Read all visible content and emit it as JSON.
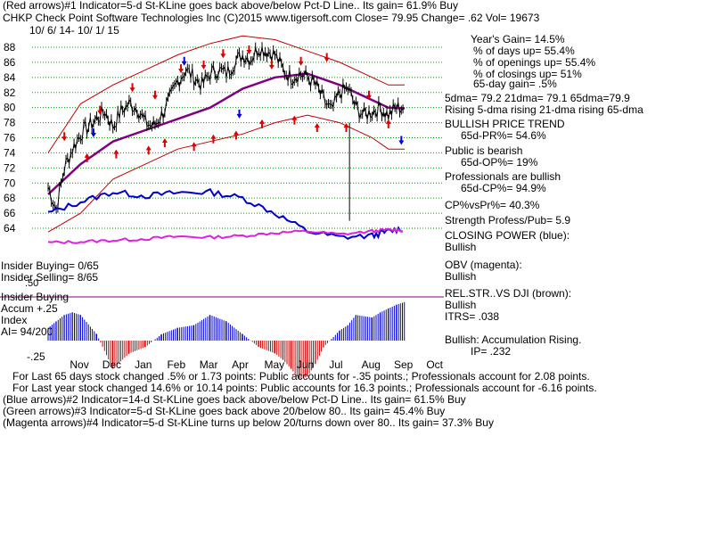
{
  "header": {
    "line1": "(Red arrows)#1 Indicator=5-d St-KLine goes back above/below Pct-D Line.. Its gain= 61.9% Buy",
    "line2": "CHKP   Check Point Software Technologies Inc  (C)2015 www.tigersoft.com     Close=  79.95  Change= .62 Vol= 19673",
    "dates": "10/ 6/ 14- 10/ 1/ 15"
  },
  "left_labels": {
    "insider_buying_count": "Insider Buying= 0/65",
    "insider_selling_count": "Insider Selling= 8/65",
    "obv_level": ".50",
    "insider_buying": "Insider Buying",
    "accum_plus": "Accum +.25",
    "index": "Index",
    "ai": "AI= 94/200",
    "minus25": "-.25"
  },
  "right_panel": {
    "year_gain": "Year's Gain= 14.5%",
    "pct_days_up": "% of days up= 55.4%",
    "pct_openings_up": "% of openings up= 55.4%",
    "pct_closings_up": "% of closings up= 51%",
    "gain_65": "65-day gain= .5%",
    "ma_line": "5dma= 79.2  21dma= 79.1  65dma=79.9",
    "rising_line": "Rising 5-dma  rising 21-dma  rising 65-dma",
    "trend": "BULLISH PRICE TREND",
    "pr": "65d-PR%= 54.6%",
    "public_bearish": "Public is bearish",
    "op": "65d-OP%= 19%",
    "pros_bullish": "Professionals are bullish",
    "cp": "65d-CP%= 94.9%",
    "cpvspr": "CP%vsPr%=  40.3%",
    "strength": "Strength Profess/Pub= 5.9",
    "closing_power": "CLOSING POWER (blue):",
    "cp_bullish": "Bullish",
    "obv": "OBV (magenta):",
    "obv_bullish": "Bullish",
    "relstr": "REL.STR..VS DJI (brown):",
    "relstr_bullish": "Bullish",
    "itrs": "ITRS= .038",
    "accum": "Bullish: Accumulation Rising.",
    "ip": "IP=  .232"
  },
  "footer": {
    "line1": "For Last 65 days stock changed  .5% or  1.73 points:  Public accounts for -.35 points.;  Professionals account for  2.08 points.",
    "line2": "For Last year stock changed  14.6% or  10.14 points:  Public accounts for  16.3 points.;  Professionals account for -6.16 points.",
    "line3": "(Blue arrows)#2 Indicator=14-d St-KLine goes back above/below Pct-D Line.. Its gain= 61.5% Buy",
    "line4": "(Green arrows)#3 Indicator=5-d St-KLine goes back above 20/below 80.. Its gain= 45.4% Buy",
    "line5": "(Magenta arrows)#4 Indicator=5-d St-KLine turns up below 20/turns down over 80.. Its gain= 37.3% Buy"
  },
  "colors": {
    "price": "#000000",
    "band": "#c00000",
    "ma65": "#800080",
    "closing_power": "#0000cc",
    "obv": "#e020e0",
    "accum_pos": "#0000cc",
    "accum_neg": "#cc0000",
    "gridline": "#00a000",
    "arrow_red": "#dd0000",
    "arrow_blue": "#0000dd",
    "insider_line": "#800080"
  },
  "chart_data": {
    "type": "line",
    "title": "CHKP   Check Point Software Technologies Inc",
    "date_range": "10/ 6/ 14- 10/ 1/ 15",
    "x_ticks": [
      "Nov",
      "Dec",
      "Jan",
      "Feb",
      "Mar",
      "Apr",
      "May",
      "Jun",
      "Jul",
      "Aug",
      "Sep",
      "Oct"
    ],
    "y_ticks": [
      64,
      66,
      68,
      70,
      72,
      74,
      76,
      78,
      80,
      82,
      84,
      86,
      88
    ],
    "ylim": [
      63,
      89.5
    ],
    "grid": true,
    "series": [
      {
        "name": "Price",
        "x": [
          0,
          0.25,
          0.5,
          0.75,
          1,
          1.25,
          1.5,
          1.75,
          2,
          2.25,
          2.5,
          2.75,
          3,
          3.25,
          3.5,
          3.75,
          4,
          4.25,
          4.5,
          4.75,
          5,
          5.25,
          5.5,
          5.75,
          6,
          6.25,
          6.5,
          6.75,
          7,
          7.25,
          7.5,
          7.75,
          8,
          8.25,
          8.5,
          8.75,
          9,
          9.25,
          9.5,
          9.75,
          10,
          10.25,
          10.5,
          10.75,
          11
        ],
        "values": [
          69.5,
          66.5,
          72,
          74.5,
          76.5,
          77.5,
          78.5,
          79.5,
          77.5,
          79.5,
          80.5,
          80,
          78,
          77.5,
          79,
          81,
          83.5,
          85,
          84,
          83,
          84.5,
          85,
          84.5,
          86,
          87,
          86.5,
          88,
          87.5,
          87,
          85,
          84,
          84.5,
          84,
          83,
          81,
          79.5,
          82,
          82.5,
          80,
          79,
          79.5,
          80,
          79,
          80,
          80
        ]
      },
      {
        "name": "65-dma",
        "x": [
          0,
          1,
          2,
          3,
          4,
          5,
          6,
          7,
          8,
          9,
          10,
          10.5,
          11
        ],
        "values": [
          68.5,
          72.5,
          75.5,
          77,
          78.5,
          80,
          82.5,
          84,
          84.5,
          83,
          81,
          80,
          79.9
        ]
      },
      {
        "name": "Upper band",
        "x": [
          0,
          1,
          2,
          3,
          4,
          5,
          6,
          7,
          8,
          9,
          10,
          10.5,
          11
        ],
        "values": [
          74,
          80.5,
          83,
          85,
          87,
          88.5,
          89.5,
          89,
          87.5,
          86,
          84,
          83,
          83
        ]
      },
      {
        "name": "Lower band",
        "x": [
          0,
          1,
          2,
          3,
          4,
          5,
          6,
          7,
          8,
          9,
          10,
          10.5,
          11
        ],
        "values": [
          63.5,
          66,
          70.5,
          72.5,
          74.5,
          75.5,
          76.5,
          78,
          79,
          78,
          76,
          74.5,
          74.5
        ]
      },
      {
        "name": "Closing Power (blue)",
        "x": [
          0,
          1,
          2,
          3,
          4,
          5,
          6,
          7,
          8,
          9,
          10,
          10.5,
          11
        ],
        "values": [
          66,
          67.5,
          68.8,
          68.3,
          68.7,
          68.8,
          68,
          66,
          63.6,
          62.8,
          63,
          63.6,
          64
        ]
      },
      {
        "name": "OBV (magenta)",
        "x": [
          0,
          1,
          2,
          3,
          4,
          5,
          6,
          7,
          8,
          9,
          10,
          10.5,
          11
        ],
        "values": [
          62.1,
          62.2,
          62.4,
          62.6,
          62.9,
          62.8,
          63,
          63.4,
          63.6,
          63.2,
          63.6,
          63.8,
          63.7
        ]
      }
    ],
    "accumulation_index": {
      "ylim": [
        -0.4,
        0.5
      ],
      "x": [
        0,
        0.25,
        0.5,
        0.75,
        1,
        1.5,
        2,
        2.5,
        3,
        3.5,
        4,
        4.5,
        5,
        5.5,
        6,
        6.5,
        7,
        7.25,
        7.5,
        7.75,
        8,
        8.25,
        8.5,
        9,
        9.25,
        9.5,
        10,
        10.25,
        10.5,
        10.75,
        11
      ],
      "values": [
        0.1,
        0.15,
        0.2,
        0.22,
        0.2,
        0.05,
        -0.22,
        -0.1,
        -0.05,
        0.05,
        0.1,
        0.12,
        0.2,
        0.15,
        0.05,
        -0.05,
        -0.1,
        -0.15,
        -0.22,
        -0.3,
        -0.28,
        -0.18,
        -0.05,
        0.08,
        0.12,
        0.2,
        0.18,
        0.22,
        0.25,
        0.28,
        0.3
      ]
    },
    "annotations": [
      "red arrows: buy/sell signals",
      "blue arrows: buy/sell signals"
    ]
  }
}
